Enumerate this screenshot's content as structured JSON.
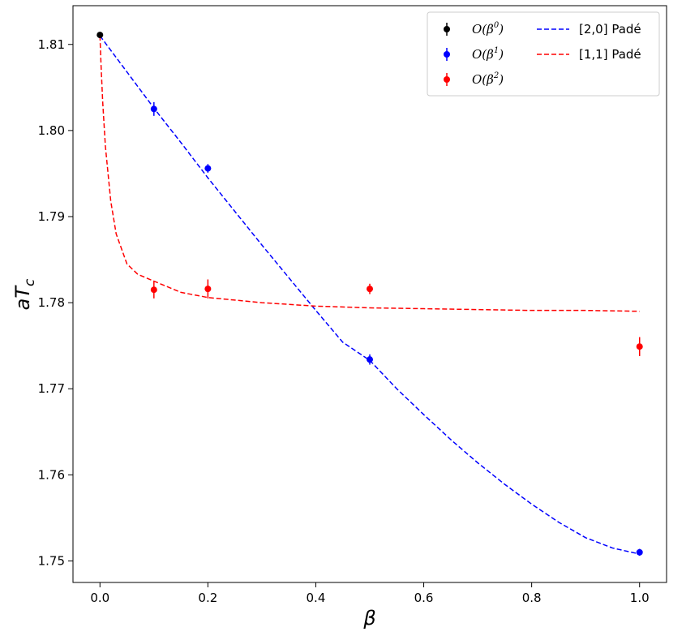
{
  "chart_data": {
    "type": "scatter",
    "title": "",
    "xlabel": "β",
    "ylabel_main": "aT",
    "ylabel_sub": "c",
    "xlim": [
      -0.05,
      1.05
    ],
    "ylim": [
      1.7475,
      1.8145
    ],
    "xticks": [
      0.0,
      0.2,
      0.4,
      0.6,
      0.8,
      1.0
    ],
    "xtick_labels": [
      "0.0",
      "0.2",
      "0.4",
      "0.6",
      "0.8",
      "1.0"
    ],
    "yticks": [
      1.75,
      1.76,
      1.77,
      1.78,
      1.79,
      1.8,
      1.81
    ],
    "ytick_labels": [
      "1.75",
      "1.76",
      "1.77",
      "1.78",
      "1.79",
      "1.80",
      "1.81"
    ],
    "grid": false,
    "legend_position": "top-right",
    "series": [
      {
        "name_base": "O(β",
        "name_exp": "0",
        "name_end": ")",
        "color": "#000000",
        "kind": "errorbar",
        "points": [
          {
            "x": 0.0,
            "y": 1.8111,
            "err": 0.0003
          }
        ]
      },
      {
        "name_base": "O(β",
        "name_exp": "1",
        "name_end": ")",
        "color": "#0000ff",
        "kind": "errorbar",
        "points": [
          {
            "x": 0.1,
            "y": 1.8025,
            "err": 0.0008
          },
          {
            "x": 0.2,
            "y": 1.7956,
            "err": 0.0005
          },
          {
            "x": 0.5,
            "y": 1.7734,
            "err": 0.0006
          },
          {
            "x": 1.0,
            "y": 1.751,
            "err": 0.0004
          }
        ]
      },
      {
        "name_base": "O(β",
        "name_exp": "2",
        "name_end": ")",
        "color": "#ff0000",
        "kind": "errorbar",
        "points": [
          {
            "x": 0.1,
            "y": 1.7815,
            "err": 0.001
          },
          {
            "x": 0.2,
            "y": 1.7816,
            "err": 0.0011
          },
          {
            "x": 0.5,
            "y": 1.7816,
            "err": 0.0006
          },
          {
            "x": 1.0,
            "y": 1.7749,
            "err": 0.0011
          }
        ]
      },
      {
        "name": "[2,0] Padé",
        "color": "#0000ff",
        "kind": "dashed-line",
        "x": [
          0.0,
          0.05,
          0.1,
          0.15,
          0.2,
          0.25,
          0.3,
          0.35,
          0.4,
          0.45,
          0.5,
          0.55,
          0.6,
          0.65,
          0.7,
          0.75,
          0.8,
          0.85,
          0.9,
          0.95,
          1.0
        ],
        "y": [
          1.811,
          1.8068,
          1.8026,
          1.7986,
          1.7945,
          1.7906,
          1.7867,
          1.7829,
          1.7791,
          1.7754,
          1.7733,
          1.77,
          1.767,
          1.7641,
          1.7614,
          1.7589,
          1.7566,
          1.7545,
          1.7527,
          1.7515,
          1.7508
        ]
      },
      {
        "name": "[1,1] Padé",
        "color": "#ff0000",
        "kind": "dashed-line",
        "x": [
          0.0,
          0.002,
          0.005,
          0.01,
          0.02,
          0.03,
          0.05,
          0.07,
          0.1,
          0.15,
          0.2,
          0.3,
          0.4,
          0.5,
          0.6,
          0.7,
          0.8,
          0.9,
          1.0
        ],
        "y": [
          1.811,
          1.8076,
          1.8034,
          1.7982,
          1.7918,
          1.788,
          1.7845,
          1.7833,
          1.7825,
          1.7812,
          1.7806,
          1.78,
          1.7796,
          1.7794,
          1.7793,
          1.7792,
          1.7791,
          1.7791,
          1.779
        ]
      }
    ]
  }
}
